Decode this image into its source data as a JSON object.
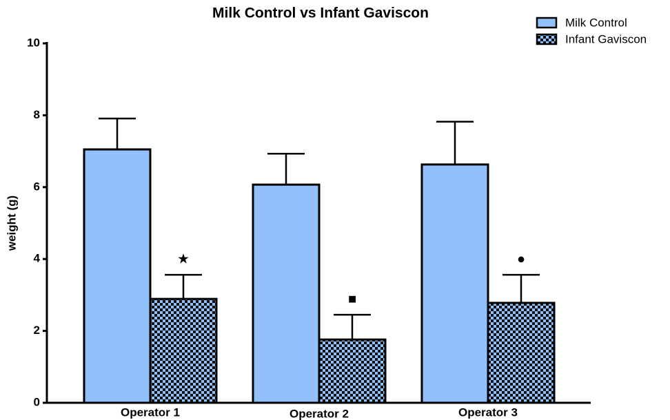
{
  "chart_data": {
    "type": "bar",
    "title": "Milk Control vs Infant Gaviscon",
    "y_label": "weight (g)",
    "categories": [
      "Operator 1",
      "Operator 2",
      "Operator 3"
    ],
    "series": [
      {
        "name": "Milk Control",
        "color": "#92c0fa",
        "values": [
          7.05,
          6.07,
          6.63
        ],
        "errors": [
          0.86,
          0.86,
          1.19
        ]
      },
      {
        "name": "Infant Gaviscon",
        "color": "#92c0fa",
        "pattern": "checkerboard",
        "values": [
          2.89,
          1.76,
          2.78
        ],
        "errors": [
          0.67,
          0.69,
          0.78
        ]
      }
    ],
    "annotations": [
      "★",
      "■",
      "●"
    ],
    "ylim": [
      0,
      10
    ],
    "yticks": [
      0,
      2,
      4,
      6,
      8,
      10
    ],
    "legend": "top-right"
  }
}
